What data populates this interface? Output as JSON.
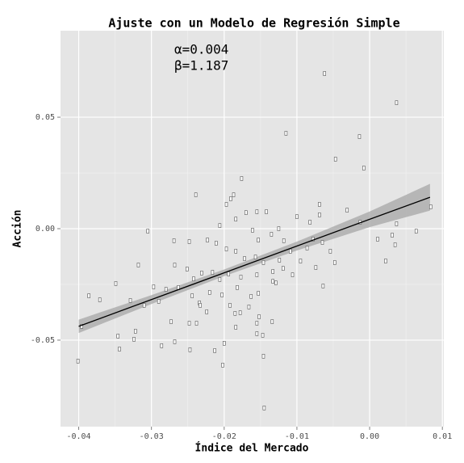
{
  "chart_data": {
    "type": "scatter",
    "title": "Ajuste con un Modelo de Regresión Simple",
    "xlabel": "Índice del Mercado",
    "ylabel": "Acción",
    "annotations": [
      "α=0.004",
      "β=1.187"
    ],
    "xlim": [
      -0.0425,
      0.0102
    ],
    "ylim": [
      -0.0888,
      0.0888
    ],
    "xticks": [
      -0.04,
      -0.03,
      -0.02,
      -0.01,
      {
        "value": 0,
        "label": "0.00"
      },
      0.01
    ],
    "yticks": [
      -0.05,
      {
        "value": 0,
        "label": "0.00"
      },
      0.05
    ],
    "grid": true,
    "color": "#555555",
    "x": [
      -0.0062,
      0.0037,
      -0.0115,
      -0.0014,
      -0.0047,
      -0.0008,
      -0.0176,
      -0.0239,
      -0.0187,
      -0.0191,
      0.0084,
      -0.0069,
      -0.0197,
      -0.017,
      -0.0184,
      -0.0155,
      -0.0142,
      -0.01,
      -0.0082,
      -0.0069,
      -0.0031,
      -0.0013,
      0.0011,
      0.0031,
      0.0037,
      0.0064,
      0.0022,
      0.0035,
      -0.0206,
      -0.0161,
      -0.0153,
      -0.0135,
      -0.0125,
      -0.0118,
      -0.0109,
      -0.0095,
      -0.0086,
      -0.0078,
      -0.0065,
      -0.0054,
      -0.0048,
      -0.0064,
      -0.0074,
      -0.0269,
      -0.0248,
      -0.0223,
      -0.0211,
      -0.0197,
      -0.0184,
      -0.0172,
      -0.0157,
      -0.0146,
      -0.0133,
      -0.0124,
      -0.0106,
      -0.0133,
      -0.0155,
      -0.0177,
      -0.0305,
      -0.0318,
      -0.0268,
      -0.0251,
      -0.0242,
      -0.0231,
      -0.0216,
      -0.0206,
      -0.0194,
      -0.0182,
      -0.0163,
      -0.0153,
      -0.0129,
      -0.0119,
      -0.0349,
      -0.0386,
      -0.0371,
      -0.0329,
      -0.0297,
      -0.028,
      -0.0263,
      -0.0244,
      -0.0234,
      -0.022,
      -0.0203,
      -0.0192,
      -0.0178,
      -0.0166,
      -0.0152,
      -0.0134,
      -0.0147,
      -0.0401,
      -0.0396,
      -0.0346,
      -0.0344,
      -0.0324,
      -0.0322,
      -0.031,
      -0.029,
      -0.0286,
      -0.0273,
      -0.0268,
      -0.0248,
      -0.0238,
      -0.0233,
      -0.0247,
      -0.0213,
      -0.02,
      -0.0184,
      -0.0202,
      -0.0185,
      -0.0155,
      -0.0146,
      -0.0145,
      -0.0155,
      -0.0224
    ],
    "y": [
      0.0696,
      0.0565,
      0.0428,
      0.0413,
      0.0312,
      0.0272,
      0.0225,
      0.0152,
      0.0152,
      0.0134,
      0.0098,
      0.0109,
      0.0109,
      0.0072,
      0.0043,
      0.0076,
      0.0076,
      0.0054,
      0.0029,
      0.0062,
      0.0083,
      0.0029,
      -0.0047,
      -0.0029,
      0.0022,
      -0.0011,
      -0.0145,
      -0.0072,
      0.0014,
      -0.0007,
      -0.0051,
      -0.0025,
      0,
      -0.0054,
      -0.0101,
      -0.0145,
      -0.0087,
      -0.0047,
      -0.0062,
      -0.0101,
      -0.0152,
      -0.0257,
      -0.0174,
      -0.0054,
      -0.0058,
      -0.0051,
      -0.0065,
      -0.0091,
      -0.0101,
      -0.0134,
      -0.0127,
      -0.0152,
      -0.0192,
      -0.0141,
      -0.0207,
      -0.0236,
      -0.0207,
      -0.0217,
      -0.0011,
      -0.0163,
      -0.0163,
      -0.0181,
      -0.0225,
      -0.0199,
      -0.0196,
      -0.0228,
      -0.0203,
      -0.0264,
      -0.0304,
      -0.029,
      -0.0243,
      -0.0178,
      -0.0246,
      -0.0301,
      -0.0319,
      -0.0322,
      -0.0261,
      -0.0272,
      -0.0264,
      -0.0301,
      -0.0333,
      -0.0286,
      -0.0297,
      -0.0344,
      -0.0377,
      -0.0351,
      -0.0395,
      -0.0417,
      -0.0478,
      -0.0594,
      -0.0438,
      -0.0482,
      -0.054,
      -0.0496,
      -0.046,
      -0.0344,
      -0.0326,
      -0.0525,
      -0.0417,
      -0.0507,
      -0.0424,
      -0.0424,
      -0.0344,
      -0.0543,
      -0.0547,
      -0.0514,
      -0.0442,
      -0.0612,
      -0.038,
      -0.0424,
      -0.0572,
      -0.0804,
      -0.0471,
      -0.0373
    ],
    "fit": {
      "color": "#000000",
      "x": [
        -0.04,
        -0.03,
        -0.02,
        -0.01,
        0,
        0.0083
      ],
      "y": [
        -0.0438,
        -0.0318,
        -0.0198,
        -0.0078,
        0.0042,
        0.0141
      ]
    },
    "band": {
      "color": "#a6a6a6",
      "x": [
        -0.04,
        -0.03,
        -0.02,
        -0.01,
        0,
        0.0083
      ],
      "lower": [
        -0.0468,
        -0.0338,
        -0.0213,
        -0.0098,
        0.0007,
        0.0081
      ],
      "upper": [
        -0.0408,
        -0.0298,
        -0.0183,
        -0.0058,
        0.0077,
        0.0201
      ]
    }
  }
}
